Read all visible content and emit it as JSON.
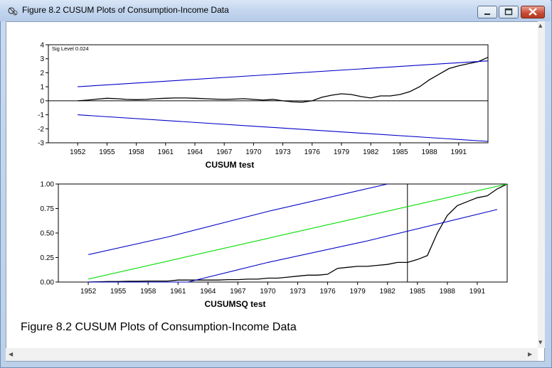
{
  "window": {
    "title": "Figure 8.2 CUSUM Plots of Consumption-Income Data"
  },
  "caption": "Figure 8.2 CUSUM Plots of Consumption-Income Data",
  "chart_data": [
    {
      "type": "line",
      "xlabel": "CUSUM test",
      "annotation": "Sig Level 0.024",
      "xlim": [
        1949,
        1994
      ],
      "ylim": [
        -3,
        4
      ],
      "x_ticks": [
        "1952",
        "1955",
        "1958",
        "1961",
        "1964",
        "1967",
        "1970",
        "1973",
        "1976",
        "1979",
        "1982",
        "1985",
        "1988",
        "1991"
      ],
      "y_ticks": [
        "4",
        "3",
        "2",
        "1",
        "0",
        "-1",
        "-2",
        "-3"
      ],
      "reference_line_x": 1994,
      "series": [
        {
          "color": "#000000",
          "x": [
            1952,
            1953,
            1954,
            1955,
            1956,
            1957,
            1958,
            1959,
            1960,
            1961,
            1962,
            1963,
            1964,
            1965,
            1966,
            1967,
            1968,
            1969,
            1970,
            1971,
            1972,
            1973,
            1974,
            1975,
            1976,
            1977,
            1978,
            1979,
            1980,
            1981,
            1982,
            1983,
            1984,
            1985,
            1986,
            1987,
            1988,
            1989,
            1990,
            1991,
            1992,
            1993,
            1994
          ],
          "values": [
            0.0,
            0.05,
            0.12,
            0.18,
            0.15,
            0.1,
            0.08,
            0.1,
            0.15,
            0.18,
            0.2,
            0.2,
            0.18,
            0.15,
            0.12,
            0.1,
            0.12,
            0.15,
            0.1,
            0.05,
            0.1,
            0.0,
            -0.08,
            -0.1,
            0.0,
            0.25,
            0.4,
            0.5,
            0.45,
            0.3,
            0.2,
            0.35,
            0.35,
            0.45,
            0.65,
            1.0,
            1.5,
            1.9,
            2.3,
            2.5,
            2.65,
            2.8,
            3.1
          ]
        },
        {
          "color": "#0000c8",
          "x": [
            1952,
            1994
          ],
          "values": [
            1.0,
            2.85
          ]
        },
        {
          "color": "#0000c8",
          "x": [
            1952,
            1994
          ],
          "values": [
            -1.0,
            -2.9
          ]
        }
      ]
    },
    {
      "type": "line",
      "xlabel": "CUSUMSQ test",
      "xlim": [
        1949,
        1994
      ],
      "ylim": [
        0,
        1
      ],
      "x_ticks": [
        "1952",
        "1955",
        "1958",
        "1961",
        "1964",
        "1967",
        "1970",
        "1973",
        "1976",
        "1979",
        "1982",
        "1985",
        "1988",
        "1991"
      ],
      "y_ticks": [
        "1.00",
        "0.75",
        "0.50",
        "0.25",
        "0.00"
      ],
      "reference_line_x": 1984,
      "series": [
        {
          "color": "#000000",
          "x": [
            1952,
            1953,
            1954,
            1955,
            1956,
            1957,
            1958,
            1959,
            1960,
            1961,
            1962,
            1963,
            1964,
            1965,
            1966,
            1967,
            1968,
            1969,
            1970,
            1971,
            1972,
            1973,
            1974,
            1975,
            1976,
            1977,
            1978,
            1979,
            1980,
            1981,
            1982,
            1983,
            1984,
            1985,
            1986,
            1987,
            1988,
            1989,
            1990,
            1991,
            1992,
            1993,
            1994
          ],
          "values": [
            0.0,
            0.003,
            0.005,
            0.005,
            0.008,
            0.008,
            0.01,
            0.01,
            0.01,
            0.02,
            0.02,
            0.02,
            0.02,
            0.02,
            0.025,
            0.025,
            0.03,
            0.03,
            0.04,
            0.04,
            0.05,
            0.06,
            0.07,
            0.07,
            0.08,
            0.14,
            0.15,
            0.16,
            0.16,
            0.17,
            0.18,
            0.2,
            0.2,
            0.23,
            0.27,
            0.5,
            0.68,
            0.78,
            0.82,
            0.86,
            0.88,
            0.95,
            1.0
          ]
        },
        {
          "color": "#0000c8",
          "x": [
            1952,
            1960,
            1970,
            1982
          ],
          "values": [
            0.28,
            0.46,
            0.72,
            1.0
          ]
        },
        {
          "color": "#00dd00",
          "x": [
            1952,
            1994
          ],
          "values": [
            0.03,
            1.0
          ]
        },
        {
          "color": "#0000c8",
          "x": [
            1952,
            1953,
            1961,
            1962,
            1970,
            1980,
            1993
          ],
          "values": [
            0.0,
            0.0,
            0.0,
            0.0,
            0.2,
            0.42,
            0.74
          ]
        }
      ]
    }
  ]
}
